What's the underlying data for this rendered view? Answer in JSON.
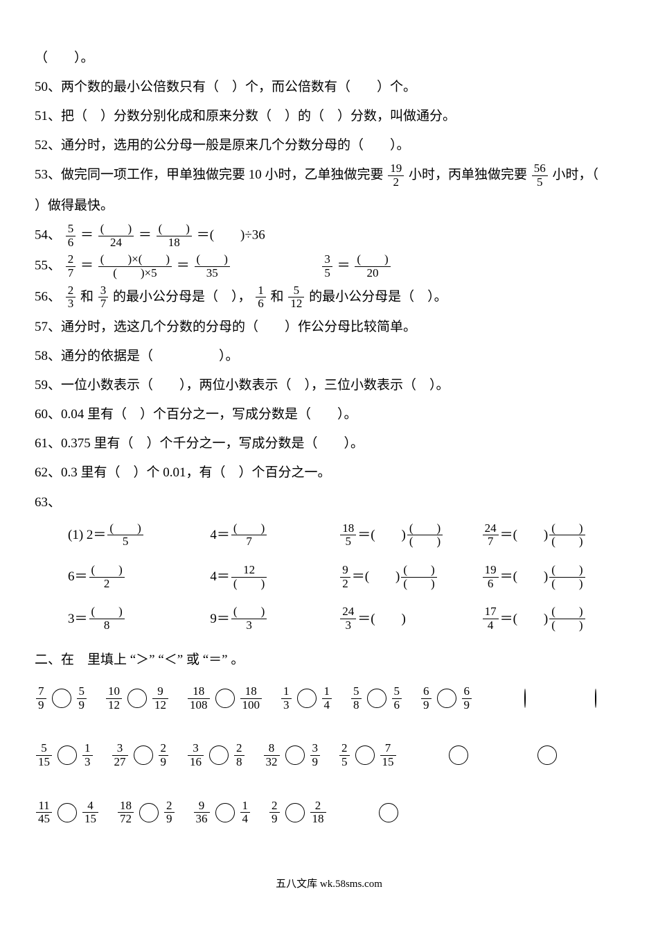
{
  "q49": "（　　）。",
  "q50": "50、两个数的最小公倍数只有（　）个，而公倍数有（　　）个。",
  "q51": "51、把（　）分数分别化成和原来分数（　）的（　）分数，叫做通分。",
  "q52": "52、通分时，选用的公分母一般是原来几个分数分母的（　　）。",
  "q53a": "53、做完同一项工作，甲单独做完要 10 小时，乙单独做完要",
  "q53b": "小时，丙单独做完要",
  "q53c": "小时，（",
  "q53d": "）做得最快。",
  "l54": "54、",
  "l55": "55、",
  "l56": "56、",
  "q56a": "和",
  "q56b": "的最小公分母是（　），",
  "q56c": "和",
  "q56d": "的最小公分母是（　）。",
  "q57": "57、通分时，选这几个分数的分母的（　　）作公分母比较简单。",
  "q58": "58、通分的依据是（　　　　　）。",
  "q59": "59、一位小数表示（　　），两位小数表示（　），三位小数表示（　）。",
  "q60": "60、0.04 里有（　）个百分之一，写成分数是（　　）。",
  "q61": "61、0.375 里有（　）个千分之一，写成分数是（　　）。",
  "q62": "62、0.3 里有（　）个 0.01，有（　）个百分之一。",
  "q63": "63、",
  "section2_title": "二、在　里填上 “＞” “＜” 或 “＝” 。",
  "footer_text": "五八文库 wk.58sms.com",
  "f19_2_n": "19",
  "f19_2_d": "2",
  "f56_5_n": "56",
  "f56_5_d": "5",
  "f54_1n": "5",
  "f54_1d": "6",
  "f54_2n": "(　　)",
  "f54_2d": "24",
  "f54_3n": "(　　)",
  "f54_3d": "18",
  "f54_tail": "＝(　　)÷36",
  "f55_1n": "2",
  "f55_1d": "7",
  "f55_2n": "(　　)×(　　)",
  "f55_2d": "(　　)×5",
  "f55_3n": "(　　)",
  "f55_3d": "35",
  "f55_4n": "3",
  "f55_4d": "5",
  "f55_5n": "(　　)",
  "f55_5d": "20",
  "f56_1n": "2",
  "f56_1d": "3",
  "f56_2n": "3",
  "f56_2d": "7",
  "f56_3n": "1",
  "f56_3d": "6",
  "f56_4n": "5",
  "f56_4d": "12",
  "q63_r1": {
    "a_lhs": "(1) 2＝",
    "a_n": "(　　)",
    "a_d": "5",
    "b_lhs": "4＝",
    "b_n": "(　　)",
    "b_d": "7",
    "c_n": "18",
    "c_d": "5",
    "c_mid": "＝(　　)",
    "d_n": "24",
    "d_d": "7",
    "d_mid": "＝(　　)"
  },
  "q63_r2": {
    "a_lhs": "6＝",
    "a_n": "(　　)",
    "a_d": "2",
    "b_lhs": "4＝",
    "b_n": "12",
    "b_d": "(　　)",
    "c_n": "9",
    "c_d": "2",
    "c_mid": "＝(　　)",
    "d_n": "19",
    "d_d": "6",
    "d_mid": "＝(　　)"
  },
  "q63_r3": {
    "a_lhs": "3＝",
    "a_n": "(　　)",
    "a_d": "8",
    "b_lhs": "9＝",
    "b_n": "(　　)",
    "b_d": "3",
    "c_n": "24",
    "c_d": "3",
    "c_mid": "＝(　　)",
    "d_n": "17",
    "d_d": "4",
    "d_mid": "＝(　　)"
  },
  "cmp": {
    "r1": [
      {
        "ln": "7",
        "ld": "9",
        "rn": "5",
        "rd": "9"
      },
      {
        "ln": "10",
        "ld": "12",
        "rn": "9",
        "rd": "12"
      },
      {
        "ln": "18",
        "ld": "108",
        "rn": "18",
        "rd": "100"
      },
      {
        "ln": "1",
        "ld": "3",
        "rn": "1",
        "rd": "4"
      },
      {
        "ln": "5",
        "ld": "8",
        "rn": "5",
        "rd": "6"
      },
      {
        "ln": "6",
        "ld": "9",
        "rn": "6",
        "rd": "9"
      }
    ],
    "r2": [
      {
        "ln": "5",
        "ld": "15",
        "rn": "1",
        "rd": "3"
      },
      {
        "ln": "3",
        "ld": "27",
        "rn": "2",
        "rd": "9"
      },
      {
        "ln": "3",
        "ld": "16",
        "rn": "2",
        "rd": "8"
      },
      {
        "ln": "8",
        "ld": "32",
        "rn": "3",
        "rd": "9"
      },
      {
        "ln": "2",
        "ld": "5",
        "rn": "7",
        "rd": "15"
      }
    ],
    "r3": [
      {
        "ln": "11",
        "ld": "45",
        "rn": "4",
        "rd": "15"
      },
      {
        "ln": "18",
        "ld": "72",
        "rn": "2",
        "rd": "9"
      },
      {
        "ln": "9",
        "ld": "36",
        "rn": "1",
        "rd": "4"
      },
      {
        "ln": "2",
        "ld": "9",
        "rn": "2",
        "rd": "18"
      }
    ]
  }
}
